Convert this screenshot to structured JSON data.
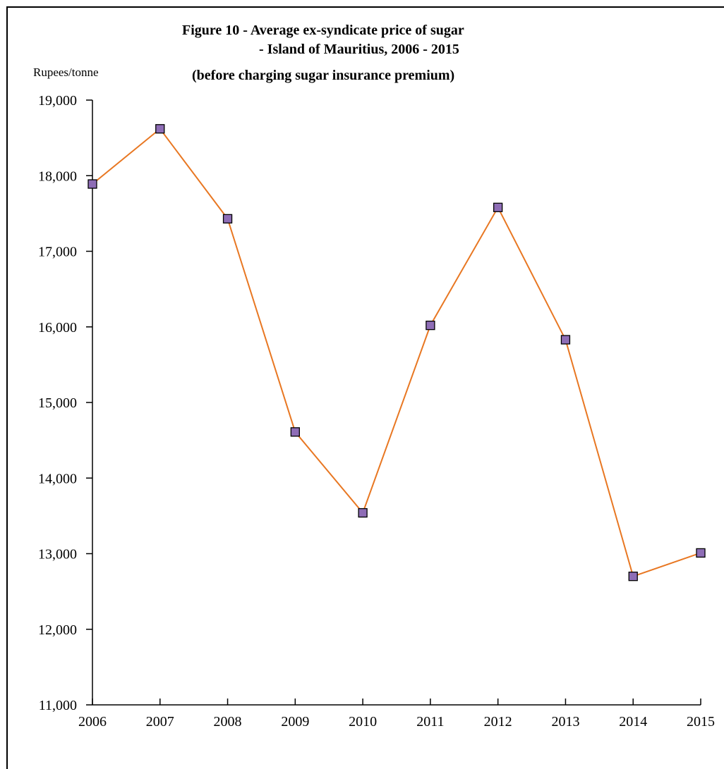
{
  "chart_data": {
    "type": "line",
    "title": "Figure 10 - Average ex-syndicate price of sugar",
    "title_lines": [
      "Figure 10 - Average ex-syndicate price of sugar",
      "- Island of Mauritius, 2006 - 2015",
      "(before charging sugar insurance premium)"
    ],
    "ylabel": "Rupees/tonne",
    "xlabel": "",
    "categories": [
      "2006",
      "2007",
      "2008",
      "2009",
      "2010",
      "2011",
      "2012",
      "2013",
      "2014",
      "2015"
    ],
    "values": [
      17890,
      18620,
      17430,
      14610,
      13540,
      16020,
      17580,
      15830,
      12700,
      13010
    ],
    "ylim": [
      11000,
      19000
    ],
    "yticks": [
      11000,
      12000,
      13000,
      14000,
      15000,
      16000,
      17000,
      18000,
      19000
    ],
    "ytick_labels": [
      "11,000",
      "12,000",
      "13,000",
      "14,000",
      "15,000",
      "16,000",
      "17,000",
      "18,000",
      "19,000"
    ],
    "grid": false,
    "legend": "none",
    "line_color": "#E87722",
    "marker_fill": "#8E6DB6",
    "marker_stroke": "#000000"
  }
}
